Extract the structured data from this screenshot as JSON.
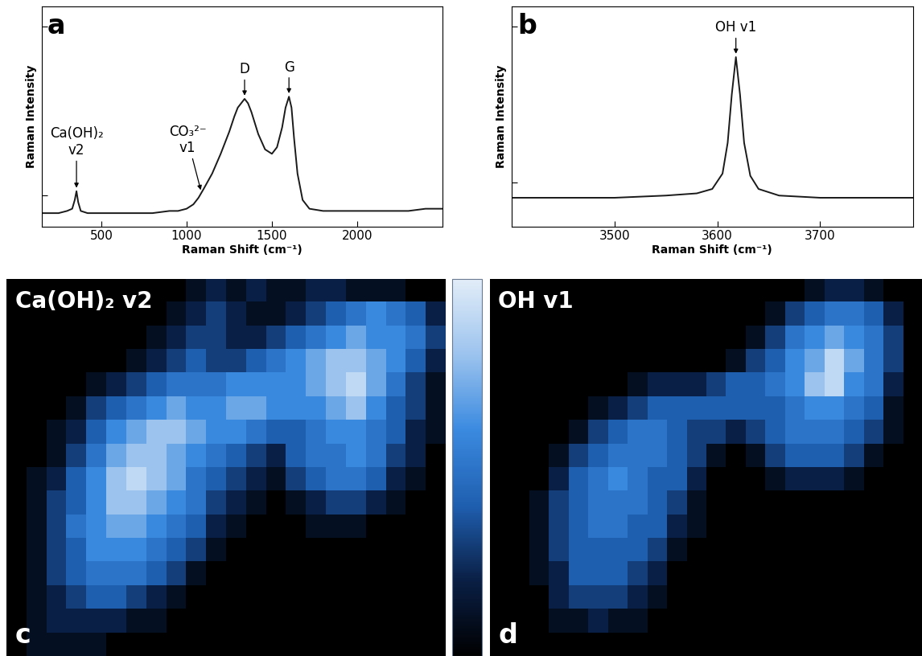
{
  "chart_data": [
    {
      "type": "line",
      "title": "a",
      "xlabel": "Raman Shift (cm⁻¹)",
      "ylabel": "Raman Intensity",
      "color": "#1a1a1a",
      "tick_labels": "x",
      "x": [
        150,
        200,
        250,
        300,
        330,
        345,
        355,
        365,
        380,
        420,
        500,
        600,
        700,
        800,
        900,
        950,
        1000,
        1040,
        1070,
        1085,
        1100,
        1150,
        1200,
        1250,
        1280,
        1300,
        1320,
        1340,
        1360,
        1380,
        1420,
        1460,
        1500,
        1530,
        1560,
        1580,
        1600,
        1615,
        1630,
        1650,
        1680,
        1720,
        1800,
        1900,
        2000,
        2100,
        2200,
        2300,
        2400,
        2500
      ],
      "values": [
        6,
        6,
        6,
        7,
        8,
        12,
        16,
        11,
        7,
        6,
        6,
        6,
        6,
        6,
        7,
        7,
        8,
        10,
        13,
        15,
        17,
        24,
        33,
        43,
        50,
        54,
        56,
        58,
        56,
        52,
        42,
        35,
        33,
        36,
        45,
        54,
        59,
        54,
        40,
        24,
        12,
        8,
        7,
        7,
        7,
        7,
        7,
        7,
        8,
        8
      ],
      "xlim": [
        150,
        2500
      ],
      "ylim": [
        0,
        100
      ],
      "xticks": [
        500,
        1000,
        1500,
        2000
      ],
      "yticks": [
        14,
        91
      ],
      "annotations": [
        {
          "text": "Ca(OH)₂\nv2",
          "x": 355,
          "y": 17
        },
        {
          "text": "CO₃²⁻\nv1",
          "x": 1085,
          "y": 16
        },
        {
          "text": "D",
          "x": 1340,
          "y": 59
        },
        {
          "text": "G",
          "x": 1600,
          "y": 60
        }
      ]
    },
    {
      "type": "line",
      "title": "b",
      "xlabel": "Raman Shift (cm⁻¹)",
      "ylabel": "Raman Intensity",
      "color": "#1a1a1a",
      "tick_labels": "x",
      "x": [
        3400,
        3450,
        3500,
        3550,
        3580,
        3595,
        3605,
        3610,
        3614,
        3618,
        3622,
        3626,
        3632,
        3640,
        3660,
        3700,
        3750,
        3790
      ],
      "values": [
        13,
        13,
        13,
        14,
        15,
        17,
        24,
        38,
        60,
        77,
        60,
        38,
        23,
        17,
        14,
        13,
        13,
        13
      ],
      "xlim": [
        3400,
        3790
      ],
      "ylim": [
        0,
        100
      ],
      "xticks": [
        3500,
        3600,
        3700
      ],
      "yticks": [
        20,
        91
      ],
      "annotations": [
        {
          "text": "OH v1",
          "x": 3618,
          "y": 78
        }
      ]
    },
    {
      "type": "heatmap",
      "title": "c",
      "subtitle": "Ca(OH)₂ v2",
      "tick_labels": false,
      "color_range": [
        0,
        10
      ],
      "cells": [
        [
          0,
          0,
          0,
          0,
          0,
          0,
          0,
          0,
          0,
          1,
          2,
          1,
          2,
          1,
          1,
          2,
          2,
          1,
          1,
          1,
          0,
          0
        ],
        [
          0,
          0,
          0,
          0,
          0,
          0,
          0,
          0,
          1,
          2,
          3,
          2,
          1,
          1,
          2,
          3,
          4,
          5,
          6,
          5,
          4,
          2
        ],
        [
          0,
          0,
          0,
          0,
          0,
          0,
          0,
          1,
          2,
          3,
          3,
          2,
          2,
          3,
          4,
          5,
          6,
          7,
          6,
          6,
          5,
          3
        ],
        [
          0,
          0,
          0,
          0,
          0,
          0,
          1,
          2,
          3,
          4,
          3,
          3,
          4,
          5,
          6,
          7,
          8,
          8,
          7,
          6,
          4,
          2
        ],
        [
          0,
          0,
          0,
          0,
          1,
          2,
          3,
          4,
          5,
          5,
          5,
          6,
          6,
          6,
          6,
          7,
          8,
          9,
          7,
          5,
          3,
          1
        ],
        [
          0,
          0,
          0,
          1,
          3,
          4,
          5,
          6,
          7,
          6,
          6,
          7,
          7,
          6,
          6,
          6,
          7,
          8,
          6,
          4,
          3,
          1
        ],
        [
          0,
          0,
          1,
          2,
          4,
          6,
          7,
          8,
          8,
          7,
          6,
          6,
          5,
          4,
          4,
          5,
          6,
          6,
          5,
          4,
          2,
          1
        ],
        [
          0,
          0,
          1,
          3,
          5,
          7,
          8,
          8,
          7,
          6,
          5,
          4,
          3,
          2,
          4,
          5,
          5,
          6,
          5,
          3,
          2,
          0
        ],
        [
          0,
          1,
          2,
          4,
          6,
          8,
          9,
          8,
          7,
          5,
          4,
          3,
          2,
          1,
          3,
          4,
          5,
          5,
          4,
          2,
          1,
          0
        ],
        [
          0,
          1,
          3,
          4,
          6,
          8,
          8,
          7,
          6,
          5,
          3,
          2,
          1,
          0,
          1,
          2,
          3,
          3,
          2,
          1,
          0,
          0
        ],
        [
          0,
          1,
          3,
          5,
          6,
          7,
          7,
          6,
          5,
          4,
          2,
          1,
          0,
          0,
          0,
          1,
          1,
          1,
          0,
          0,
          0,
          0
        ],
        [
          0,
          1,
          3,
          4,
          6,
          6,
          6,
          5,
          4,
          3,
          1,
          0,
          0,
          0,
          0,
          0,
          0,
          0,
          0,
          0,
          0,
          0
        ],
        [
          0,
          1,
          3,
          4,
          5,
          5,
          5,
          4,
          3,
          1,
          0,
          0,
          0,
          0,
          0,
          0,
          0,
          0,
          0,
          0,
          0,
          0
        ],
        [
          0,
          1,
          2,
          3,
          4,
          4,
          3,
          2,
          1,
          0,
          0,
          0,
          0,
          0,
          0,
          0,
          0,
          0,
          0,
          0,
          0,
          0
        ],
        [
          0,
          1,
          2,
          2,
          2,
          2,
          1,
          1,
          0,
          0,
          0,
          0,
          0,
          0,
          0,
          0,
          0,
          0,
          0,
          0,
          0,
          0
        ],
        [
          0,
          1,
          1,
          1,
          1,
          0,
          0,
          0,
          0,
          0,
          0,
          0,
          0,
          0,
          0,
          0,
          0,
          0,
          0,
          0,
          0,
          0
        ]
      ]
    },
    {
      "type": "heatmap",
      "title": "d",
      "subtitle": "OH v1",
      "tick_labels": false,
      "color_range": [
        0,
        10
      ],
      "cells": [
        [
          0,
          0,
          0,
          0,
          0,
          0,
          0,
          0,
          0,
          0,
          0,
          0,
          0,
          0,
          0,
          0,
          1,
          2,
          2,
          1,
          0,
          0
        ],
        [
          0,
          0,
          0,
          0,
          0,
          0,
          0,
          0,
          0,
          0,
          0,
          0,
          0,
          0,
          1,
          3,
          4,
          5,
          5,
          4,
          2,
          0
        ],
        [
          0,
          0,
          0,
          0,
          0,
          0,
          0,
          0,
          0,
          0,
          0,
          0,
          0,
          1,
          3,
          5,
          6,
          7,
          6,
          5,
          3,
          0
        ],
        [
          0,
          0,
          0,
          0,
          0,
          0,
          0,
          0,
          0,
          0,
          0,
          0,
          1,
          3,
          4,
          6,
          7,
          9,
          7,
          5,
          3,
          0
        ],
        [
          0,
          0,
          0,
          0,
          0,
          0,
          0,
          1,
          2,
          2,
          2,
          3,
          4,
          4,
          5,
          6,
          8,
          9,
          6,
          5,
          2,
          0
        ],
        [
          0,
          0,
          0,
          0,
          0,
          1,
          2,
          3,
          4,
          4,
          4,
          4,
          4,
          4,
          4,
          5,
          6,
          6,
          5,
          4,
          1,
          0
        ],
        [
          0,
          0,
          0,
          0,
          1,
          3,
          4,
          5,
          5,
          4,
          3,
          3,
          2,
          3,
          4,
          5,
          5,
          5,
          4,
          3,
          1,
          0
        ],
        [
          0,
          0,
          0,
          1,
          3,
          4,
          5,
          5,
          5,
          4,
          3,
          1,
          0,
          1,
          3,
          4,
          4,
          4,
          3,
          1,
          0,
          0
        ],
        [
          0,
          0,
          0,
          2,
          4,
          5,
          6,
          5,
          4,
          4,
          2,
          0,
          0,
          0,
          1,
          2,
          2,
          2,
          1,
          0,
          0,
          0
        ],
        [
          0,
          0,
          1,
          3,
          4,
          5,
          5,
          5,
          4,
          3,
          1,
          0,
          0,
          0,
          0,
          0,
          0,
          0,
          0,
          0,
          0,
          0
        ],
        [
          0,
          0,
          1,
          3,
          4,
          5,
          5,
          4,
          4,
          2,
          1,
          0,
          0,
          0,
          0,
          0,
          0,
          0,
          0,
          0,
          0,
          0
        ],
        [
          0,
          0,
          1,
          3,
          4,
          4,
          4,
          4,
          3,
          1,
          0,
          0,
          0,
          0,
          0,
          0,
          0,
          0,
          0,
          0,
          0,
          0
        ],
        [
          0,
          0,
          1,
          2,
          4,
          4,
          4,
          3,
          2,
          0,
          0,
          0,
          0,
          0,
          0,
          0,
          0,
          0,
          0,
          0,
          0,
          0
        ],
        [
          0,
          0,
          0,
          2,
          3,
          3,
          3,
          2,
          1,
          0,
          0,
          0,
          0,
          0,
          0,
          0,
          0,
          0,
          0,
          0,
          0,
          0
        ],
        [
          0,
          0,
          0,
          1,
          1,
          2,
          1,
          1,
          0,
          0,
          0,
          0,
          0,
          0,
          0,
          0,
          0,
          0,
          0,
          0,
          0,
          0
        ],
        [
          0,
          0,
          0,
          0,
          0,
          0,
          0,
          0,
          0,
          0,
          0,
          0,
          0,
          0,
          0,
          0,
          0,
          0,
          0,
          0,
          0,
          0
        ]
      ]
    }
  ]
}
